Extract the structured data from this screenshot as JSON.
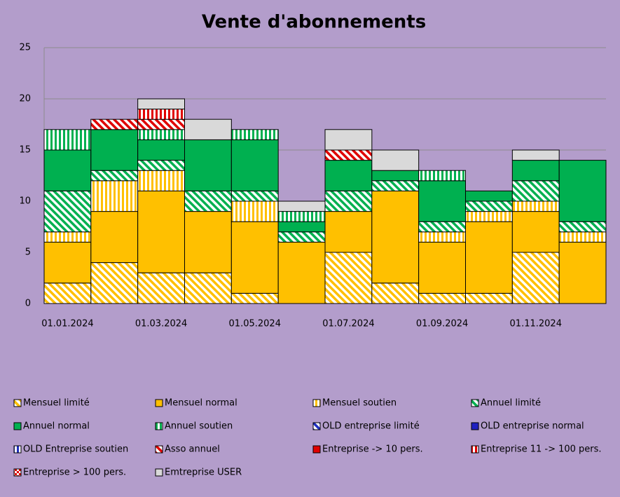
{
  "chart_data": {
    "type": "stacked_bar",
    "title": "Vente d'abonnements",
    "categories": [
      "01.01.2024",
      null,
      "01.03.2024",
      null,
      "01.05.2024",
      null,
      "01.07.2024",
      null,
      "01.09.2024",
      null,
      "01.11.2024",
      null
    ],
    "ylim": [
      0,
      25
    ],
    "yticks": [
      0,
      5,
      10,
      15,
      20,
      25
    ],
    "grid": true,
    "legend": "bottom",
    "series": [
      {
        "name": "Mensuel limité",
        "color": "#ffc000",
        "pattern": "diagonal",
        "values": [
          2,
          4,
          3,
          3,
          1,
          0,
          5,
          2,
          1,
          1,
          5,
          0
        ]
      },
      {
        "name": "Mensuel normal",
        "color": "#ffc000",
        "pattern": "solid",
        "values": [
          4,
          5,
          8,
          6,
          7,
          6,
          4,
          9,
          5,
          7,
          4,
          6
        ]
      },
      {
        "name": "Mensuel soutien",
        "color": "#ffc000",
        "pattern": "vertical",
        "values": [
          1,
          3,
          2,
          0,
          2,
          0,
          0,
          0,
          1,
          1,
          1,
          1
        ]
      },
      {
        "name": "Annuel limité",
        "color": "#00b050",
        "pattern": "diagonal",
        "values": [
          4,
          1,
          1,
          2,
          1,
          1,
          2,
          1,
          1,
          1,
          2,
          1
        ]
      },
      {
        "name": "Annuel normal",
        "color": "#00b050",
        "pattern": "solid",
        "values": [
          4,
          4,
          2,
          5,
          5,
          1,
          3,
          1,
          4,
          1,
          2,
          6
        ]
      },
      {
        "name": "Annuel soutien",
        "color": "#00b050",
        "pattern": "vertical",
        "values": [
          2,
          0,
          1,
          0,
          1,
          1,
          0,
          0,
          1,
          0,
          0,
          0
        ]
      },
      {
        "name": "OLD entreprise limité",
        "color": "#2030c0",
        "pattern": "diagonal",
        "values": [
          0,
          0,
          0,
          0,
          0,
          0,
          0,
          0,
          0,
          0,
          0,
          0
        ]
      },
      {
        "name": "OLD entreprise normal",
        "color": "#2020c0",
        "pattern": "solid",
        "values": [
          0,
          0,
          0,
          0,
          0,
          0,
          0,
          0,
          0,
          0,
          0,
          0
        ]
      },
      {
        "name": "OLD Entreprise soutien",
        "color": "#2030c0",
        "pattern": "vertical",
        "values": [
          0,
          0,
          0,
          0,
          0,
          0,
          0,
          0,
          0,
          0,
          0,
          0
        ]
      },
      {
        "name": "Asso annuel",
        "color": "#e00000",
        "pattern": "diagonal",
        "values": [
          0,
          1,
          1,
          0,
          0,
          0,
          1,
          0,
          0,
          0,
          0,
          0
        ]
      },
      {
        "name": "Entreprise -> 10 pers.",
        "color": "#e00000",
        "pattern": "solid",
        "values": [
          0,
          0,
          0,
          0,
          0,
          0,
          0,
          0,
          0,
          0,
          0,
          0
        ]
      },
      {
        "name": "Entreprise 11 -> 100 pers.",
        "color": "#e00000",
        "pattern": "vertical",
        "values": [
          0,
          0,
          1,
          0,
          0,
          0,
          0,
          0,
          0,
          0,
          0,
          0
        ]
      },
      {
        "name": "Entreprise > 100 pers.",
        "color": "#e00000",
        "pattern": "check",
        "values": [
          0,
          0,
          0,
          0,
          0,
          0,
          0,
          0,
          0,
          0,
          0,
          0
        ]
      },
      {
        "name": "Emtreprise USER",
        "color": "#d9d9d9",
        "pattern": "solid",
        "values": [
          0,
          0,
          1,
          2,
          0,
          1,
          2,
          2,
          0,
          0,
          1,
          0
        ]
      }
    ]
  }
}
